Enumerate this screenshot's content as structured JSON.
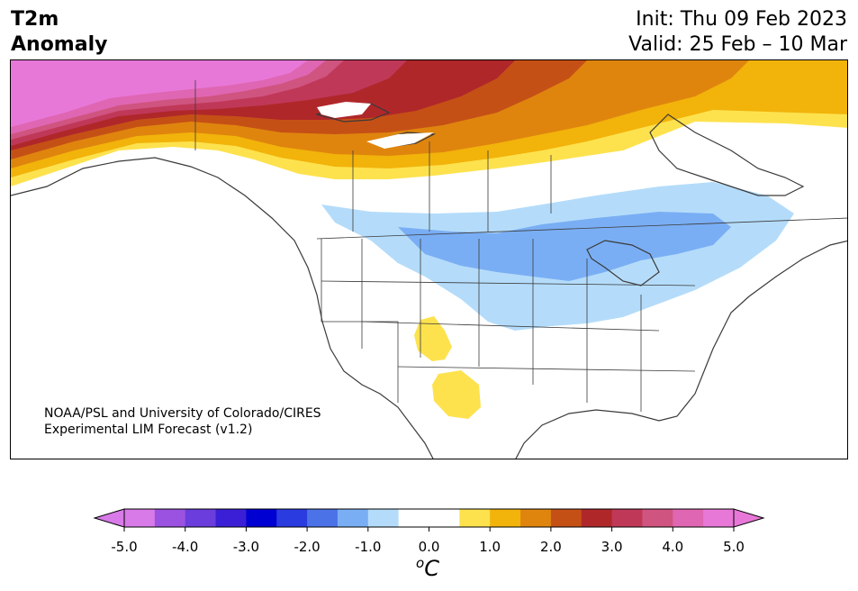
{
  "title": {
    "line1": "T2m",
    "line2": "Anomaly"
  },
  "header": {
    "init": "Init: Thu 09 Feb 2023",
    "valid": "Valid: 25 Feb – 10 Mar"
  },
  "credit": {
    "line1": "NOAA/PSL and University of Colorado/CIRES",
    "line2": "Experimental LIM Forecast (v1.2)"
  },
  "colorbar": {
    "unit_base": "C",
    "unit_sup": "o",
    "ticks": [
      "-5.0",
      "-4.0",
      "-3.0",
      "-2.0",
      "-1.0",
      "0.0",
      "1.0",
      "2.0",
      "3.0",
      "4.0",
      "5.0"
    ],
    "colors": [
      "#d87ae8",
      "#9c52e0",
      "#6a3ddc",
      "#3a1fd6",
      "#0000d2",
      "#2a3be0",
      "#4c72e8",
      "#7aaef4",
      "#b4dcfa",
      "#ffffff",
      "#ffffff",
      "#fde24e",
      "#f2b30a",
      "#df850e",
      "#c55016",
      "#b0272a",
      "#c03858",
      "#d05480",
      "#df66b2",
      "#e878d8"
    ],
    "below_color": "#d87ae8",
    "above_color": "#e878d8"
  },
  "regions": [
    {
      "name": "alaska-warm",
      "anomaly": 5.0
    },
    {
      "name": "northern-canada-warm",
      "anomaly": 3.0
    },
    {
      "name": "eastern-canada-warm",
      "anomaly": 1.5
    },
    {
      "name": "central-na-cool",
      "anomaly": -1.0
    },
    {
      "name": "great-lakes-cool",
      "anomaly": -1.5
    },
    {
      "name": "southwest-warm",
      "anomaly": 0.5
    }
  ]
}
